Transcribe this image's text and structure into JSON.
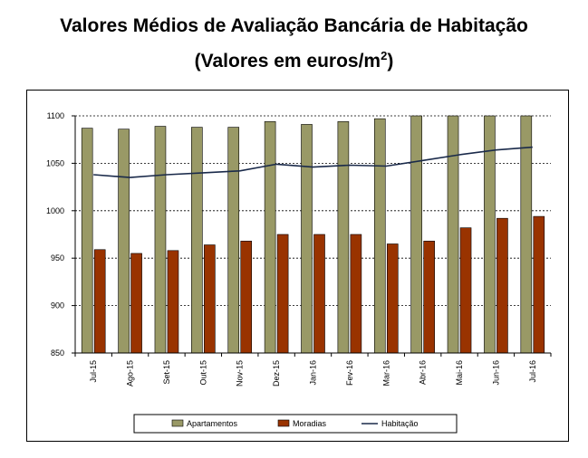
{
  "title_main": "Valores Médios de Avaliação Bancária de Habitação",
  "title_sub_prefix": "(Valores em euros/m",
  "title_sub_sup": "2",
  "title_sub_suffix": ")",
  "colors": {
    "apartamentos": "#999966",
    "moradias": "#993300",
    "habitacao": "#1a2a4a",
    "grid": "#000000"
  },
  "chart_data": {
    "type": "bar",
    "title": "Valores Médios de Avaliação Bancária de Habitação",
    "subtitle": "(Valores em euros/m2)",
    "categories": [
      "Jul-15",
      "Ago-15",
      "Set-15",
      "Out-15",
      "Nov-15",
      "Dez-15",
      "Jan-16",
      "Fev-16",
      "Mar-16",
      "Abr-16",
      "Mai-16",
      "Jun-16",
      "Jul-16"
    ],
    "ylim": [
      850,
      1100
    ],
    "yticks": [
      850,
      900,
      950,
      1000,
      1050,
      1100
    ],
    "grid": "horizontal dashed",
    "legend_position": "bottom",
    "series": [
      {
        "name": "Apartamentos",
        "type": "bar",
        "values": [
          1087,
          1086,
          1089,
          1088,
          1088,
          1094,
          1091,
          1094,
          1097,
          1102,
          1108,
          1113,
          1117
        ]
      },
      {
        "name": "Moradias",
        "type": "bar",
        "values": [
          959,
          955,
          958,
          964,
          968,
          975,
          975,
          975,
          965,
          968,
          982,
          992,
          994
        ]
      },
      {
        "name": "Habitação",
        "type": "line",
        "values": [
          1038,
          1035,
          1038,
          1040,
          1042,
          1049,
          1046,
          1048,
          1047,
          1053,
          1059,
          1064,
          1067
        ]
      }
    ]
  }
}
